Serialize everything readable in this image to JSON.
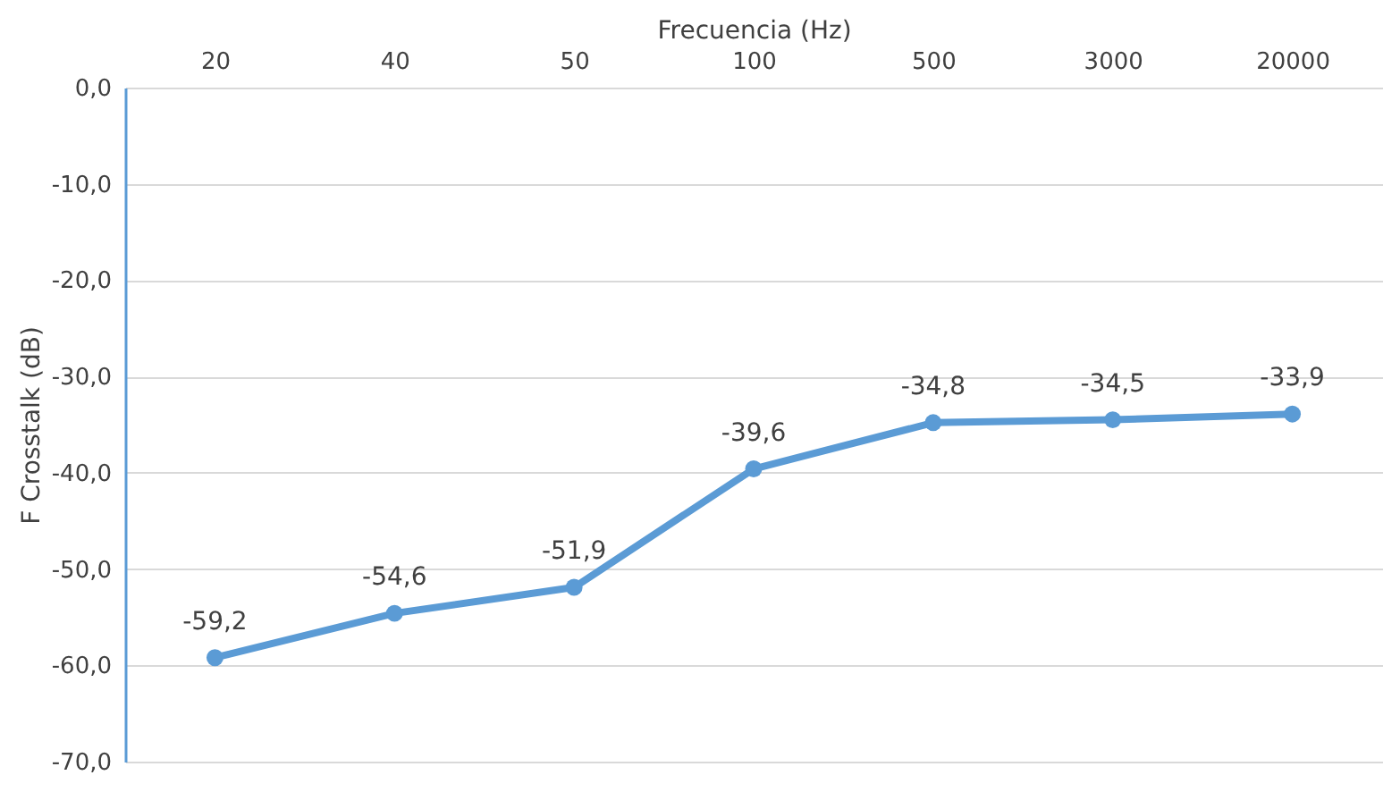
{
  "chart_data": {
    "type": "line",
    "xlabel": "Frecuencia (Hz)",
    "ylabel": "F Crosstalk (dB)",
    "categories": [
      "20",
      "40",
      "50",
      "100",
      "500",
      "3000",
      "20000"
    ],
    "series": [
      {
        "color": "#5b9bd5",
        "values": [
          -59.2,
          -54.6,
          -51.9,
          -39.6,
          -34.8,
          -34.5,
          -33.9
        ],
        "value_labels": [
          "-59,2",
          "-54,6",
          "-51,9",
          "-39,6",
          "-34,8",
          "-34,5",
          "-33,9"
        ]
      }
    ],
    "ylim": [
      -70,
      0
    ],
    "yticks": [
      {
        "value": 0,
        "label": "0,0"
      },
      {
        "value": -10,
        "label": "-10,0"
      },
      {
        "value": -20,
        "label": "-20,0"
      },
      {
        "value": -30,
        "label": "-30,0"
      },
      {
        "value": -40,
        "label": "-40,0"
      },
      {
        "value": -50,
        "label": "-50,0"
      },
      {
        "value": -60,
        "label": "-60,0"
      },
      {
        "value": -70,
        "label": "-70,0"
      }
    ],
    "grid": "y",
    "marker": "circle",
    "line_style": "solid"
  }
}
